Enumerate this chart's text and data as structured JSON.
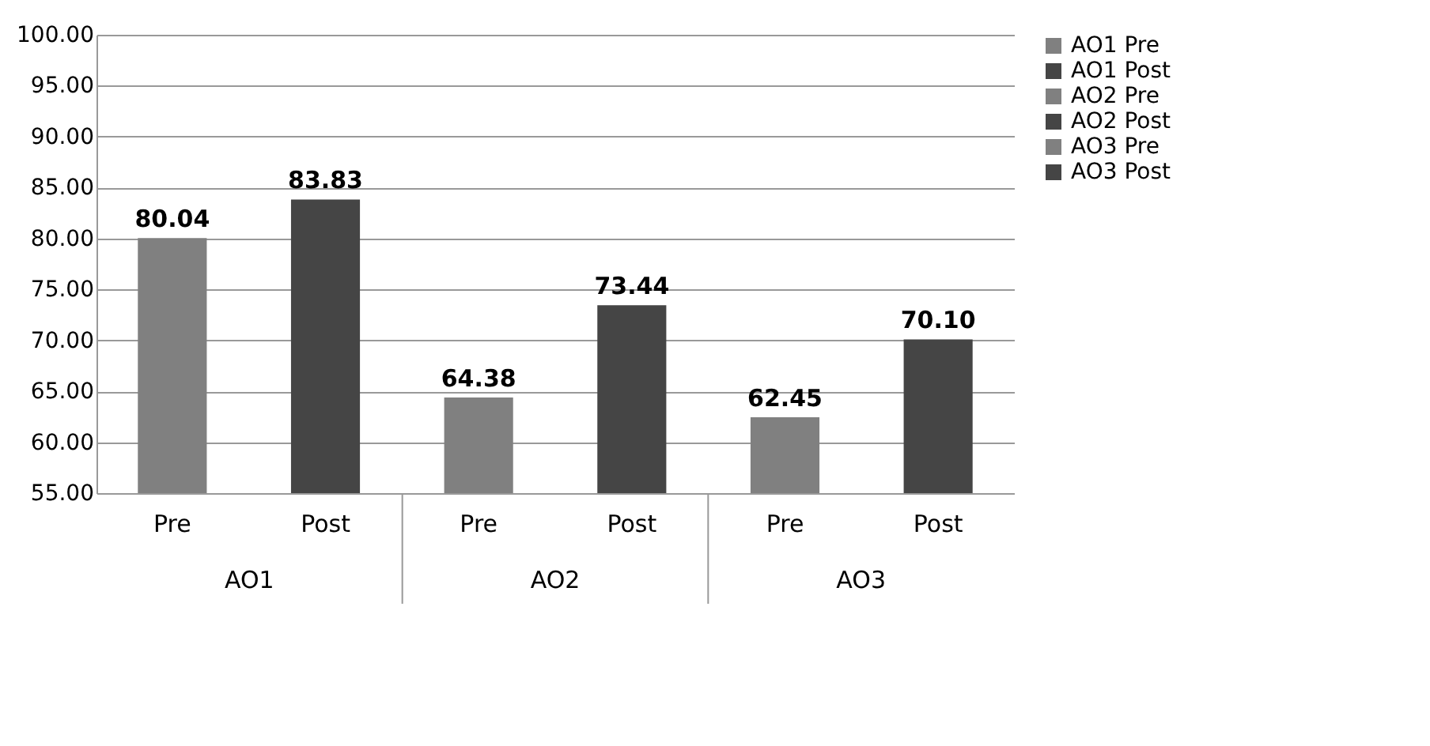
{
  "chart_data": {
    "type": "bar",
    "categories": [
      "Pre",
      "Post",
      "Pre",
      "Post",
      "Pre",
      "Post"
    ],
    "series": [
      {
        "name": "AO1 Pre",
        "color": "#808080",
        "values": [
          80.04,
          null,
          null,
          null,
          null,
          null
        ]
      },
      {
        "name": "AO1 Post",
        "color": "#454545",
        "values": [
          null,
          83.83,
          null,
          null,
          null,
          null
        ]
      },
      {
        "name": "AO2 Pre",
        "color": "#808080",
        "values": [
          null,
          null,
          64.38,
          null,
          null,
          null
        ]
      },
      {
        "name": "AO2 Post",
        "color": "#454545",
        "values": [
          null,
          null,
          null,
          73.44,
          null,
          null
        ]
      },
      {
        "name": "AO3 Pre",
        "color": "#808080",
        "values": [
          null,
          null,
          null,
          null,
          62.45,
          null
        ]
      },
      {
        "name": "AO3 Post",
        "color": "#454545",
        "values": [
          null,
          null,
          null,
          null,
          null,
          70.1
        ],
        "value_labels": [
          null,
          null,
          null,
          null,
          null,
          "70.10"
        ]
      }
    ],
    "annotations": [
      "AO1",
      "AO2",
      "AO3"
    ],
    "ylim": [
      55,
      100
    ],
    "yticks": [
      {
        "value": 55,
        "label": "55.00"
      },
      {
        "value": 60,
        "label": "60.00"
      },
      {
        "value": 65,
        "label": "65.00"
      },
      {
        "value": 70,
        "label": "70.00"
      },
      {
        "value": 75,
        "label": "75.00"
      },
      {
        "value": 80,
        "label": "80.00"
      },
      {
        "value": 85,
        "label": "85.00"
      },
      {
        "value": 90,
        "label": "90.00"
      },
      {
        "value": 95,
        "label": "95.00"
      },
      {
        "value": 100,
        "label": "100.00"
      }
    ],
    "grid": "y",
    "legend": "right",
    "data_labels": true
  }
}
